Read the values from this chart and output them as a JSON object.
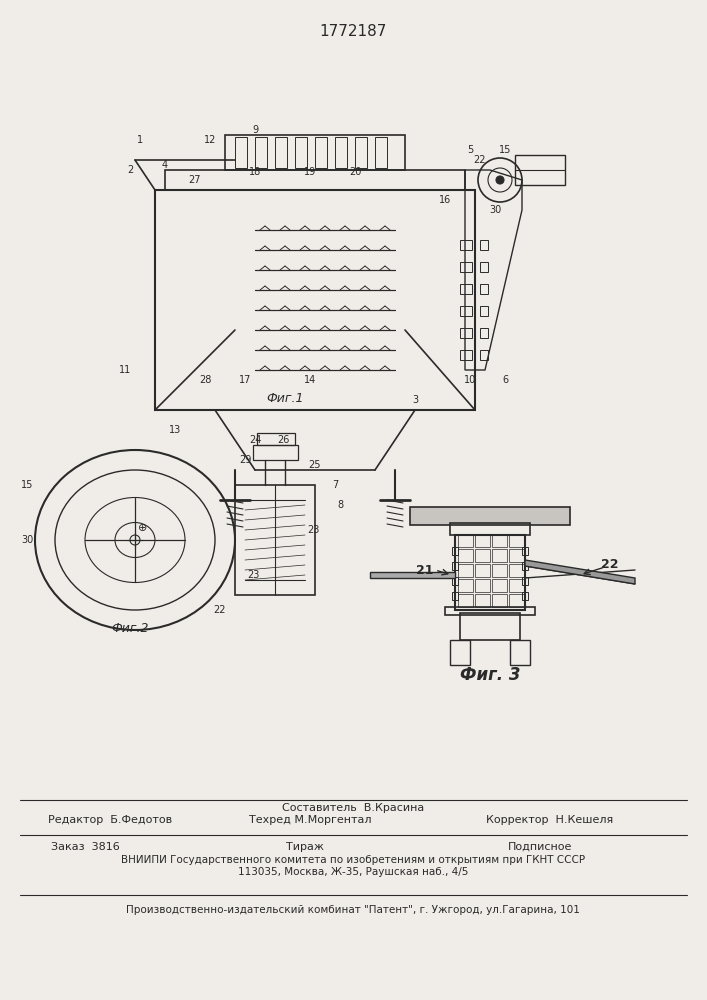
{
  "patent_number": "1772187",
  "bg_color": "#f0ede8",
  "line_color": "#2a2a2a",
  "fig1_caption": "Фиг.1",
  "fig2_caption": "Фиг.2",
  "fig3_caption": "Фиг. 3",
  "footer": {
    "editor_label": "Редактор",
    "editor_name": "Б.Федотов",
    "composer_label": "Составитель",
    "composer_name": "В.Красина",
    "techred_label": "Техред",
    "techred_name": "М.Моргентал",
    "corrector_label": "Корректор",
    "corrector_name": "Н.Кешеля",
    "order_label": "Заказ",
    "order_num": "3816",
    "tirazh_label": "Тираж",
    "tirazh_val": "",
    "podpisnoe_label": "Подписное",
    "vnipi_line": "ВНИИПИ Государственного комитета по изобретениям и открытиям при ГКНТ СССР",
    "address_line": "113035, Москва, Ж-35, Раушская наб., 4/5",
    "publisher_line": "Производственно-издательский комбинат \"Патент\", г. Ужгород, ул.Гагарина, 101"
  }
}
